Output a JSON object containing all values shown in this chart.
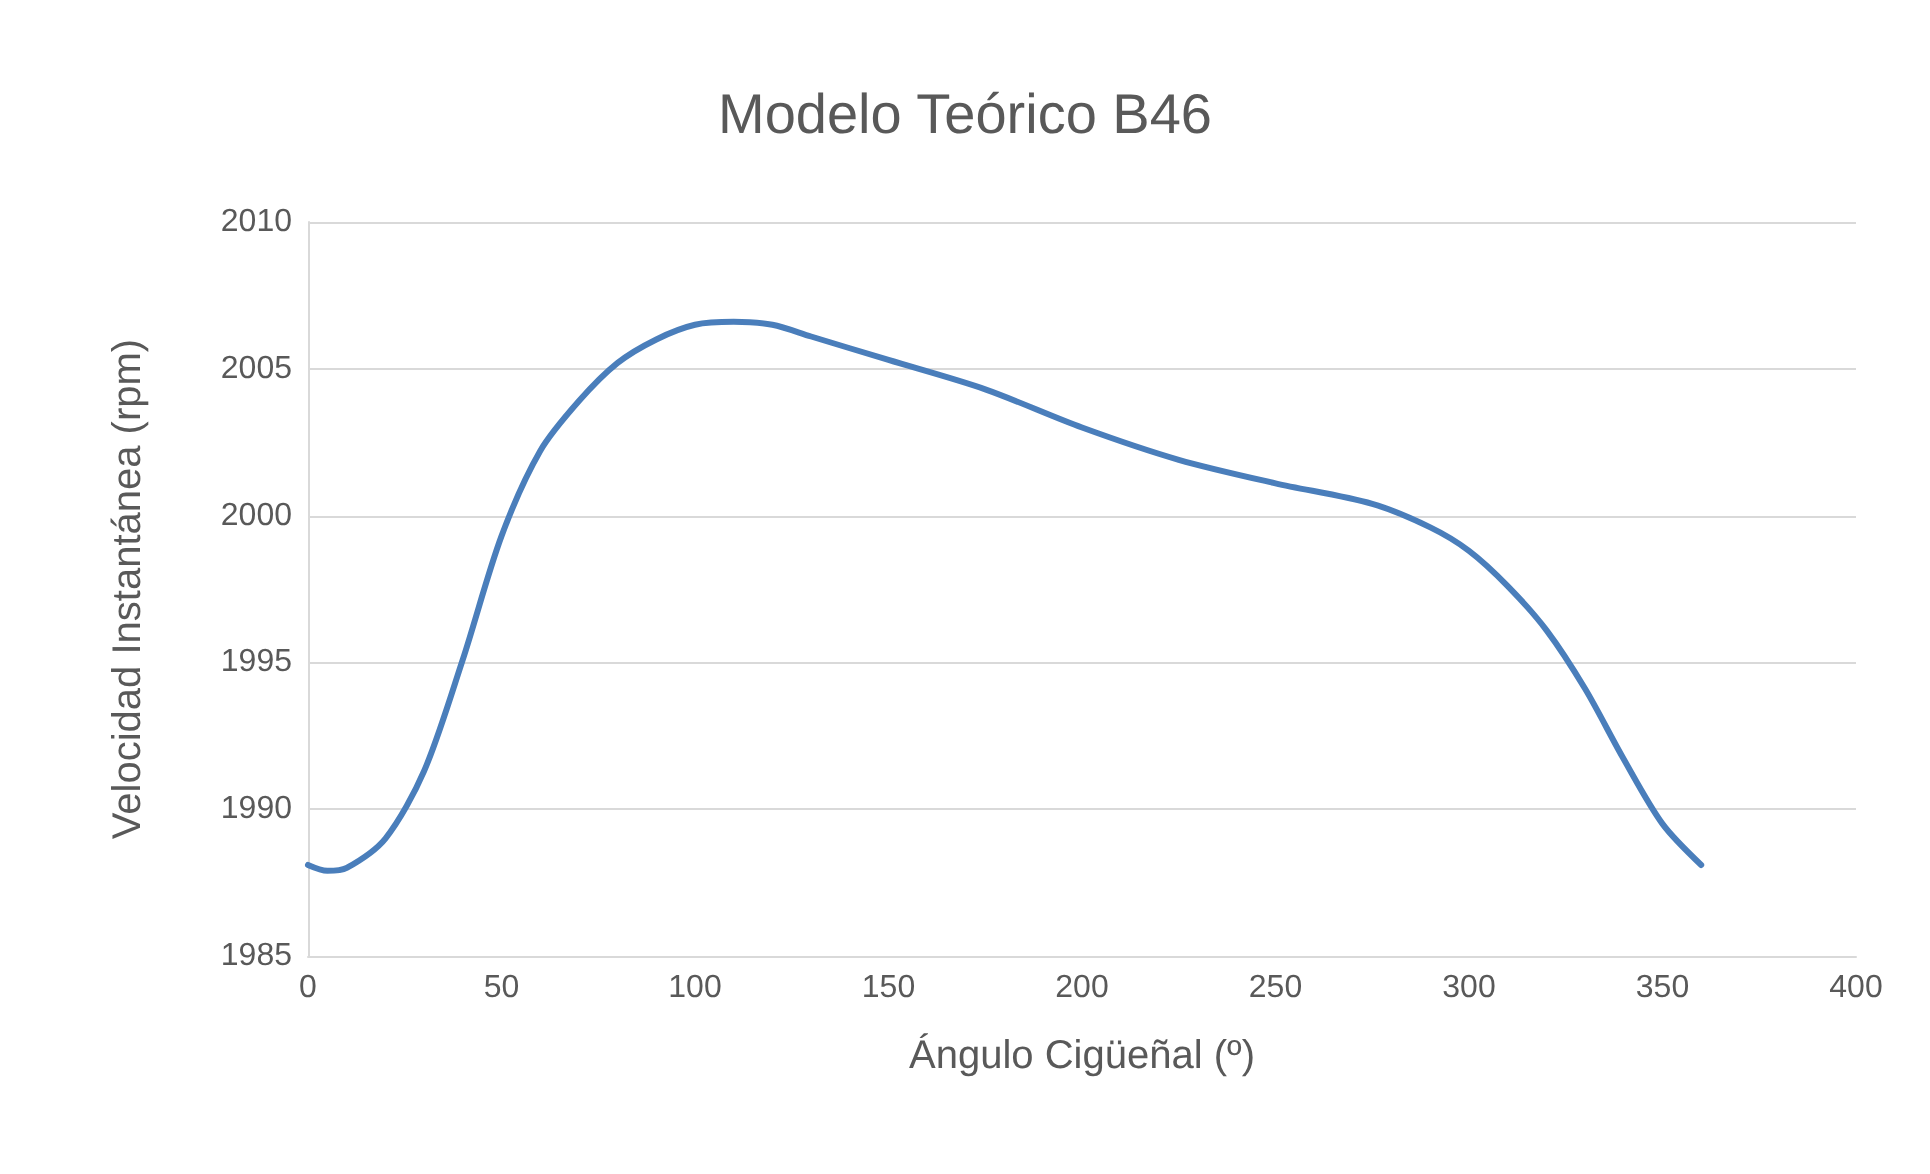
{
  "chart_data": {
    "type": "line",
    "title": "Modelo Teórico B46",
    "xlabel": "Ángulo Cigüeñal (º)",
    "ylabel": "Velocidad Instantánea (rpm)",
    "xlim": [
      0,
      400
    ],
    "xticks": [
      0,
      50,
      100,
      150,
      200,
      250,
      300,
      350,
      400
    ],
    "ylim": [
      1985,
      2010
    ],
    "yticks": [
      1985,
      1990,
      1995,
      2000,
      2005,
      2010
    ],
    "grid": "y",
    "marker": "none",
    "line_style": "solid",
    "series": [
      {
        "color": "#4a7ebb",
        "x": [
          0,
          5,
          10,
          20,
          30,
          40,
          50,
          60,
          70,
          80,
          90,
          100,
          110,
          120,
          130,
          150,
          175,
          200,
          225,
          250,
          275,
          290,
          300,
          310,
          320,
          330,
          340,
          350,
          360
        ],
        "values": [
          1988.1,
          1987.9,
          1988,
          1989,
          1991.3,
          1995.1,
          1999.3,
          2002.2,
          2003.9,
          2005.2,
          2006,
          2006.5,
          2006.6,
          2006.5,
          2006.1,
          2005.3,
          2004.3,
          2003,
          2001.9,
          2001.1,
          2000.4,
          1999.6,
          1998.8,
          1997.6,
          1996.1,
          1994.1,
          1991.7,
          1989.5,
          1988.1
        ]
      }
    ]
  }
}
